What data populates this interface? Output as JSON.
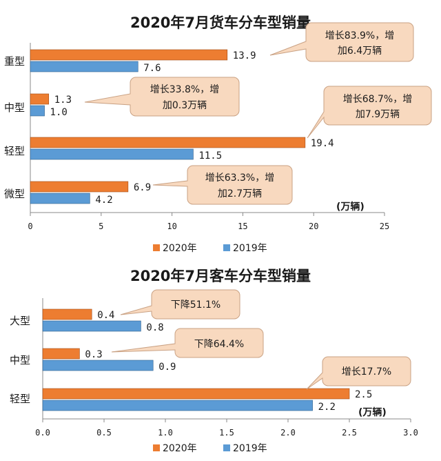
{
  "colors": {
    "series_2020": "#ED7D31",
    "series_2019": "#5B9BD5",
    "callout_fill": "#F8D9BF",
    "callout_stroke": "#C9A183"
  },
  "chart_data": [
    {
      "type": "bar",
      "orientation": "horizontal",
      "title": "2020年7月货车分车型销量",
      "categories": [
        "重型",
        "中型",
        "轻型",
        "微型"
      ],
      "series": [
        {
          "name": "2020年",
          "values": [
            13.9,
            1.3,
            19.4,
            6.9
          ]
        },
        {
          "name": "2019年",
          "values": [
            7.6,
            1.0,
            11.5,
            4.2
          ]
        }
      ],
      "value_labels_2020": [
        "13.9",
        "1.3",
        "19.4",
        "6.9"
      ],
      "value_labels_2019": [
        "7.6",
        "1.0",
        "11.5",
        "4.2"
      ],
      "xlim": [
        0,
        25
      ],
      "xticks": [
        "0",
        "5",
        "10",
        "15",
        "20",
        "25"
      ],
      "unit": "(万辆)",
      "legend": [
        "2020年",
        "2019年"
      ],
      "legend_position": "bottom",
      "annotations": [
        {
          "category": "重型",
          "lines": [
            "增长83.9%，增",
            "加6.4万辆"
          ]
        },
        {
          "category": "中型",
          "lines": [
            "增长33.8%，增",
            "加0.3万辆"
          ]
        },
        {
          "category": "轻型",
          "lines": [
            "增长68.7%，增",
            "加7.9万辆"
          ]
        },
        {
          "category": "微型",
          "lines": [
            "增长63.3%，增",
            "加2.7万辆"
          ]
        }
      ]
    },
    {
      "type": "bar",
      "orientation": "horizontal",
      "title": "2020年7月客车分车型销量",
      "categories": [
        "大型",
        "中型",
        "轻型"
      ],
      "series": [
        {
          "name": "2020年",
          "values": [
            0.4,
            0.3,
            2.5
          ]
        },
        {
          "name": "2019年",
          "values": [
            0.8,
            0.9,
            2.2
          ]
        }
      ],
      "value_labels_2020": [
        "0.4",
        "0.3",
        "2.5"
      ],
      "value_labels_2019": [
        "0.8",
        "0.9",
        "2.2"
      ],
      "xlim": [
        0,
        3.0
      ],
      "xticks": [
        "0.0",
        "0.5",
        "1.0",
        "1.5",
        "2.0",
        "2.5",
        "3.0"
      ],
      "unit": "(万辆)",
      "legend": [
        "2020年",
        "2019年"
      ],
      "legend_position": "bottom",
      "annotations": [
        {
          "category": "大型",
          "lines": [
            "下降51.1%"
          ]
        },
        {
          "category": "中型",
          "lines": [
            "下降64.4%"
          ]
        },
        {
          "category": "轻型",
          "lines": [
            "增长17.7%"
          ]
        }
      ]
    }
  ]
}
